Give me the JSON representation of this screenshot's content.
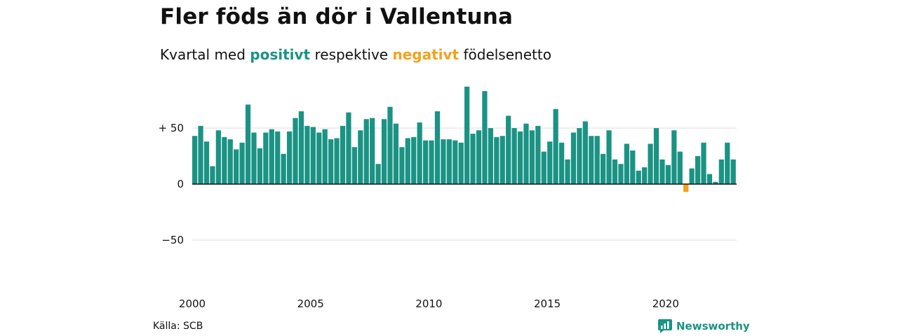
{
  "header": {
    "title": "Fler föds än dör i Vallentuna",
    "subtitle_prefix": "Kvartal med ",
    "subtitle_positive": "positivt",
    "subtitle_middle": " respektive ",
    "subtitle_negative": "negativt",
    "subtitle_suffix": " födelsenetto"
  },
  "footer": {
    "source": "Källa: SCB",
    "brand": "Newsworthy"
  },
  "colors": {
    "positive": "#1a9384",
    "negative": "#f2a21d",
    "grid": "#dddddd",
    "baseline": "#111111"
  },
  "chart_data": {
    "type": "bar",
    "title": "Fler föds än dör i Vallentuna",
    "subtitle": "Kvartal med positivt respektive negativt födelsenetto",
    "xlabel": "",
    "ylabel": "",
    "x_start_year": 2000,
    "x_ticks": [
      "2000",
      "2005",
      "2010",
      "2015",
      "2020"
    ],
    "y_ticks": [
      {
        "value": 50,
        "label": "+ 50"
      },
      {
        "value": 0,
        "label": "0"
      },
      {
        "value": -50,
        "label": "−50"
      }
    ],
    "ylim": [
      -90,
      90
    ],
    "grid": true,
    "values": [
      43,
      52,
      38,
      16,
      48,
      42,
      40,
      31,
      37,
      71,
      46,
      32,
      46,
      49,
      47,
      27,
      47,
      59,
      65,
      52,
      51,
      46,
      49,
      40,
      41,
      52,
      64,
      33,
      48,
      58,
      59,
      18,
      58,
      69,
      54,
      33,
      41,
      42,
      55,
      39,
      39,
      65,
      40,
      40,
      39,
      37,
      87,
      45,
      48,
      83,
      50,
      42,
      43,
      61,
      50,
      47,
      54,
      48,
      52,
      29,
      38,
      67,
      37,
      22,
      46,
      50,
      56,
      43,
      43,
      27,
      48,
      22,
      18,
      36,
      30,
      12,
      15,
      36,
      50,
      22,
      17,
      48,
      29,
      -7,
      14,
      25,
      37,
      9,
      2,
      22,
      37,
      22
    ]
  }
}
